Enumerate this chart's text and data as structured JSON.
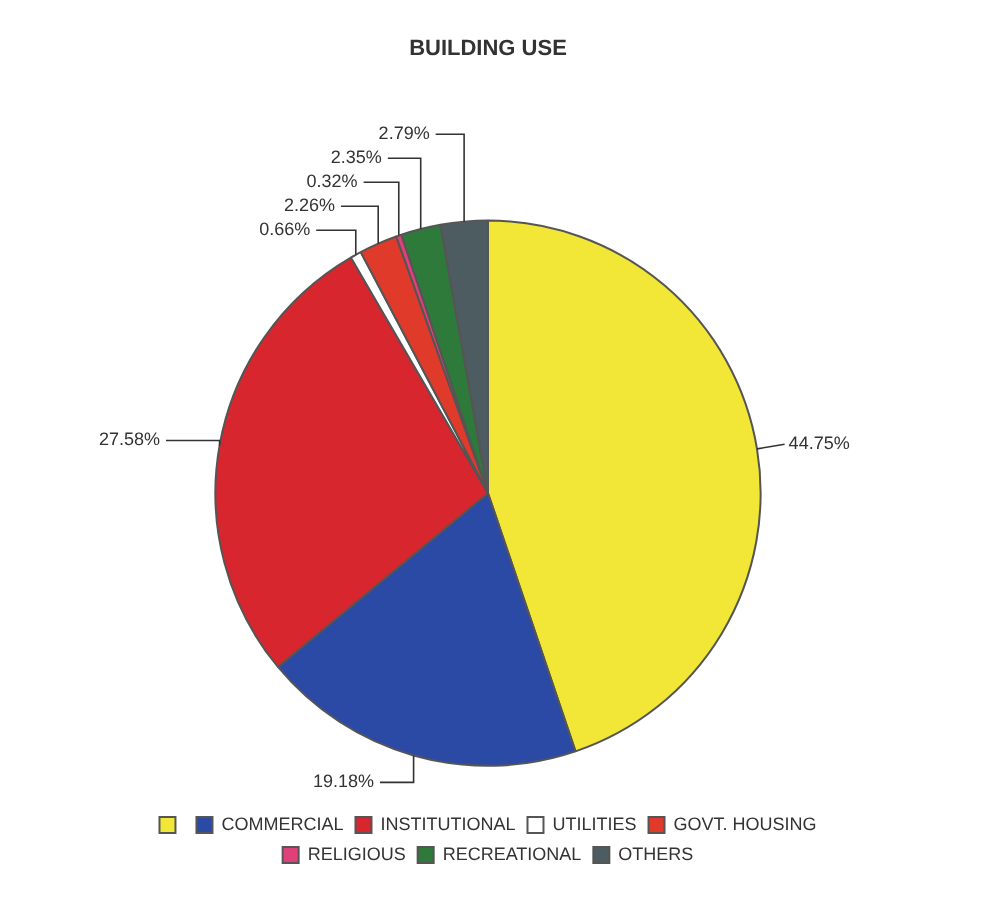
{
  "chart_data": {
    "type": "pie",
    "title": "BUILDING USE",
    "categories": [
      null,
      "COMMERCIAL",
      "INSTITUTIONAL",
      "UTILITIES",
      "GOVT. HOUSING",
      "RELIGIOUS",
      "RECREATIONAL",
      "OTHERS"
    ],
    "values": [
      44.75,
      19.18,
      27.58,
      0.66,
      2.26,
      0.32,
      2.35,
      2.79
    ],
    "colors": [
      "#f2e637",
      "#2a4aa6",
      "#d8262e",
      "#ffffff",
      "#e03a2a",
      "#e0407a",
      "#2e7a3a",
      "#4c5c60"
    ],
    "value_labels": [
      "44.75%",
      "19.18%",
      "27.58%",
      "0.66%",
      "2.26%",
      "0.32%",
      "2.35%",
      "2.79%"
    ],
    "legend": "bottom"
  }
}
